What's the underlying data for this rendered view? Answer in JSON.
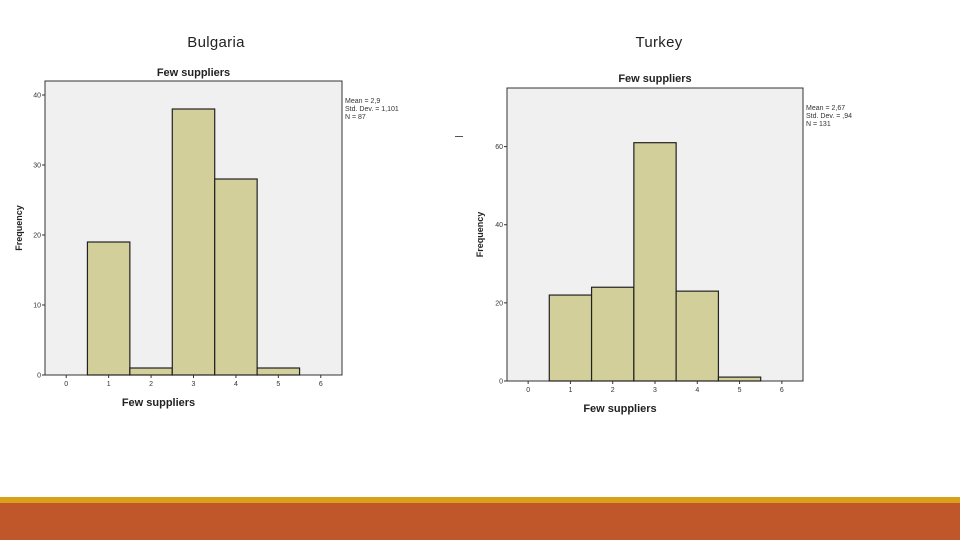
{
  "slide": {
    "left_title": "Bulgaria",
    "right_title": "Turkey",
    "footer_line_color": "#d9a01a",
    "footer_band_color": "#c0572a"
  },
  "chart_data": [
    {
      "type": "bar",
      "title": "Few suppliers",
      "xlabel": "Few suppliers",
      "ylabel": "Frequency",
      "x_ticks": [
        "0",
        "1",
        "2",
        "3",
        "4",
        "5",
        "6"
      ],
      "xlim": [
        -0.5,
        6.5
      ],
      "y_ticks": [
        0,
        10,
        20,
        30,
        40
      ],
      "ylim": [
        0,
        42
      ],
      "categories": [
        "1",
        "2",
        "3",
        "4",
        "5"
      ],
      "x": [
        1,
        2,
        3,
        4,
        5
      ],
      "values": [
        19,
        1,
        38,
        28,
        1
      ],
      "stats": [
        "Mean = 2,9",
        "Std. Dev. = 1,101",
        "N = 87"
      ],
      "bar_color": "#d3cf9a",
      "plot_bg": "#f0f0f0",
      "grid": false,
      "legend": "top-right"
    },
    {
      "type": "bar",
      "title": "Few suppliers",
      "xlabel": "Few suppliers",
      "ylabel": "Frequency",
      "x_ticks": [
        "0",
        "1",
        "2",
        "3",
        "4",
        "5",
        "6"
      ],
      "xlim": [
        -0.5,
        6.5
      ],
      "y_ticks": [
        0,
        20,
        40,
        60
      ],
      "ylim": [
        0,
        75
      ],
      "categories": [
        "1",
        "2",
        "3",
        "4",
        "5"
      ],
      "x": [
        1,
        2,
        3,
        4,
        5
      ],
      "values": [
        22,
        24,
        61,
        23,
        1
      ],
      "stats": [
        "Mean = 2,67",
        "Std. Dev. = ,94",
        "N = 131"
      ],
      "bar_color": "#d3cf9a",
      "plot_bg": "#f0f0f0",
      "grid": false,
      "legend": "top-right"
    }
  ]
}
